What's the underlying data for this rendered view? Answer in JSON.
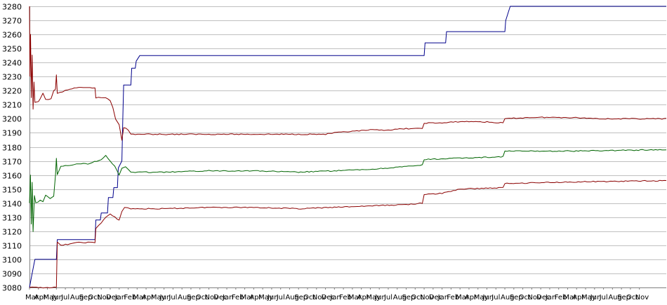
{
  "chart_data": {
    "type": "line",
    "title": "",
    "xlabel": "",
    "ylabel": "",
    "ylim": [
      3080,
      3280
    ],
    "yticks": [
      3080,
      3090,
      3100,
      3110,
      3120,
      3130,
      3140,
      3150,
      3160,
      3170,
      3180,
      3190,
      3200,
      3210,
      3220,
      3230,
      3240,
      3250,
      3260,
      3270,
      3280
    ],
    "grid": true,
    "legend": "none",
    "x_domain": [
      0,
      71
    ],
    "xticks": [
      {
        "x": 0,
        "label": "Mar"
      },
      {
        "x": 1,
        "label": "Apr"
      },
      {
        "x": 2,
        "label": "May"
      },
      {
        "x": 3,
        "label": "Jun"
      },
      {
        "x": 4,
        "label": "Jul"
      },
      {
        "x": 5,
        "label": "Aug"
      },
      {
        "x": 6,
        "label": "Sep"
      },
      {
        "x": 7,
        "label": "Oct"
      },
      {
        "x": 8,
        "label": "Nov"
      },
      {
        "x": 9,
        "label": "Dec"
      },
      {
        "x": 10,
        "label": "Jan"
      },
      {
        "x": 11,
        "label": "Feb"
      },
      {
        "x": 12,
        "label": "Mar"
      },
      {
        "x": 13,
        "label": "Apr"
      },
      {
        "x": 14,
        "label": "May"
      },
      {
        "x": 15,
        "label": "Jun"
      },
      {
        "x": 16,
        "label": "Jul"
      },
      {
        "x": 17,
        "label": "Aug"
      },
      {
        "x": 18,
        "label": "Sep"
      },
      {
        "x": 19,
        "label": "Oct"
      },
      {
        "x": 20,
        "label": "Nov"
      },
      {
        "x": 21,
        "label": "Dec"
      },
      {
        "x": 22,
        "label": "Jan"
      },
      {
        "x": 23,
        "label": "Feb"
      },
      {
        "x": 24,
        "label": "Mar"
      },
      {
        "x": 25,
        "label": "Apr"
      },
      {
        "x": 26,
        "label": "May"
      },
      {
        "x": 27,
        "label": "Jun"
      },
      {
        "x": 28,
        "label": "Jul"
      },
      {
        "x": 29,
        "label": "Aug"
      },
      {
        "x": 30,
        "label": "Sep"
      },
      {
        "x": 31,
        "label": "Oct"
      },
      {
        "x": 32,
        "label": "Nov"
      },
      {
        "x": 33,
        "label": "Dec"
      },
      {
        "x": 34,
        "label": "Jan"
      },
      {
        "x": 35,
        "label": "Feb"
      },
      {
        "x": 36,
        "label": "Mar"
      },
      {
        "x": 37,
        "label": "Apr"
      },
      {
        "x": 38,
        "label": "May"
      },
      {
        "x": 39,
        "label": "Jun"
      },
      {
        "x": 40,
        "label": "Jul"
      },
      {
        "x": 41,
        "label": "Aug"
      },
      {
        "x": 42,
        "label": "Sep"
      },
      {
        "x": 43,
        "label": "Oct"
      },
      {
        "x": 44,
        "label": "Nov"
      },
      {
        "x": 45,
        "label": "Dec"
      },
      {
        "x": 46,
        "label": "Jan"
      },
      {
        "x": 47,
        "label": "Feb"
      },
      {
        "x": 48,
        "label": "Mar"
      },
      {
        "x": 49,
        "label": "Apr"
      },
      {
        "x": 50,
        "label": "May"
      },
      {
        "x": 51,
        "label": "Jun"
      },
      {
        "x": 52,
        "label": "Jul"
      },
      {
        "x": 53,
        "label": "Aug"
      },
      {
        "x": 54,
        "label": "Sep"
      },
      {
        "x": 55,
        "label": "Oct"
      },
      {
        "x": 56,
        "label": "Nov"
      },
      {
        "x": 57,
        "label": "Dec"
      },
      {
        "x": 58,
        "label": "Jan"
      },
      {
        "x": 59,
        "label": "Feb"
      },
      {
        "x": 60,
        "label": "Mar"
      },
      {
        "x": 61,
        "label": "Apr"
      },
      {
        "x": 62,
        "label": "May"
      },
      {
        "x": 63,
        "label": "Jun"
      },
      {
        "x": 64,
        "label": "Jul"
      },
      {
        "x": 65,
        "label": "Aug"
      },
      {
        "x": 66,
        "label": "Sep"
      },
      {
        "x": 67,
        "label": "Oct"
      },
      {
        "x": 68,
        "label": "Nov"
      }
    ],
    "series": [
      {
        "color": "#00008b",
        "points": [
          [
            0,
            3080
          ],
          [
            0.6,
            3100
          ],
          [
            3.0,
            3100
          ],
          [
            3.1,
            3114
          ],
          [
            7.3,
            3114
          ],
          [
            7.4,
            3128
          ],
          [
            7.9,
            3128
          ],
          [
            8.0,
            3133
          ],
          [
            8.7,
            3133
          ],
          [
            8.8,
            3144
          ],
          [
            9.3,
            3144
          ],
          [
            9.4,
            3151
          ],
          [
            9.8,
            3151
          ],
          [
            9.9,
            3165
          ],
          [
            10.3,
            3170
          ],
          [
            10.4,
            3200
          ],
          [
            10.5,
            3224
          ],
          [
            11.3,
            3224
          ],
          [
            11.4,
            3236
          ],
          [
            11.8,
            3236
          ],
          [
            11.9,
            3241
          ],
          [
            12.3,
            3245
          ],
          [
            44.0,
            3245
          ],
          [
            44.1,
            3254
          ],
          [
            46.4,
            3254
          ],
          [
            46.5,
            3262
          ],
          [
            53.0,
            3262
          ],
          [
            53.1,
            3270
          ],
          [
            53.6,
            3280
          ],
          [
            71,
            3280
          ]
        ]
      },
      {
        "color": "#8b0000",
        "points": [
          [
            0,
            3280
          ],
          [
            0.05,
            3230
          ],
          [
            0.12,
            3260
          ],
          [
            0.2,
            3215
          ],
          [
            0.3,
            3245
          ],
          [
            0.4,
            3207
          ],
          [
            0.5,
            3226
          ],
          [
            0.6,
            3212
          ],
          [
            1.0,
            3212
          ],
          [
            1.2,
            3214
          ],
          [
            1.5,
            3218
          ],
          [
            1.8,
            3214
          ],
          [
            2.4,
            3214
          ],
          [
            2.7,
            3220
          ],
          [
            2.9,
            3221
          ],
          [
            3.0,
            3231
          ],
          [
            3.1,
            3218
          ],
          [
            4.0,
            3220
          ],
          [
            5.0,
            3222
          ],
          [
            6.0,
            3222
          ],
          [
            7.0,
            3222
          ],
          [
            7.3,
            3222
          ],
          [
            7.4,
            3215
          ],
          [
            8.5,
            3215
          ],
          [
            9.0,
            3213
          ],
          [
            9.3,
            3208
          ],
          [
            9.6,
            3200
          ],
          [
            10.0,
            3196
          ],
          [
            10.3,
            3185
          ],
          [
            10.5,
            3194
          ],
          [
            11.0,
            3192
          ],
          [
            11.3,
            3189
          ],
          [
            15,
            3189
          ],
          [
            20,
            3189
          ],
          [
            25,
            3189
          ],
          [
            30,
            3189
          ],
          [
            33,
            3189
          ],
          [
            34,
            3190
          ],
          [
            36,
            3191
          ],
          [
            38,
            3192
          ],
          [
            40,
            3192
          ],
          [
            42,
            3193
          ],
          [
            43.8,
            3193
          ],
          [
            44.0,
            3197
          ],
          [
            46,
            3197
          ],
          [
            48,
            3198
          ],
          [
            50,
            3198
          ],
          [
            52.8,
            3197
          ],
          [
            53.0,
            3200
          ],
          [
            56,
            3201
          ],
          [
            60,
            3201
          ],
          [
            64,
            3200
          ],
          [
            71,
            3200
          ]
        ]
      },
      {
        "color": "#006400",
        "points": [
          [
            0,
            3140
          ],
          [
            0.1,
            3160
          ],
          [
            0.2,
            3125
          ],
          [
            0.3,
            3155
          ],
          [
            0.4,
            3120
          ],
          [
            0.55,
            3145
          ],
          [
            0.7,
            3140
          ],
          [
            1.2,
            3142
          ],
          [
            1.5,
            3141
          ],
          [
            1.8,
            3146
          ],
          [
            2.3,
            3143
          ],
          [
            2.7,
            3145
          ],
          [
            2.9,
            3160
          ],
          [
            3.0,
            3172
          ],
          [
            3.1,
            3160
          ],
          [
            3.5,
            3166
          ],
          [
            4.5,
            3167
          ],
          [
            5.5,
            3168
          ],
          [
            6.5,
            3168
          ],
          [
            7.0,
            3169
          ],
          [
            7.5,
            3170
          ],
          [
            8.0,
            3171
          ],
          [
            8.5,
            3174
          ],
          [
            9.0,
            3170
          ],
          [
            9.5,
            3166
          ],
          [
            10.0,
            3160
          ],
          [
            10.3,
            3165
          ],
          [
            10.7,
            3166
          ],
          [
            11.3,
            3162
          ],
          [
            15,
            3162
          ],
          [
            20,
            3163
          ],
          [
            25,
            3163
          ],
          [
            30,
            3162
          ],
          [
            34,
            3163
          ],
          [
            38,
            3164
          ],
          [
            42,
            3166
          ],
          [
            43.8,
            3167
          ],
          [
            44.0,
            3171
          ],
          [
            48,
            3172
          ],
          [
            52.8,
            3173
          ],
          [
            53.0,
            3177
          ],
          [
            60,
            3177
          ],
          [
            71,
            3178
          ]
        ]
      },
      {
        "color": "#8b0000",
        "points": [
          [
            0,
            3080
          ],
          [
            3.0,
            3080
          ],
          [
            3.1,
            3112
          ],
          [
            3.5,
            3110
          ],
          [
            4.5,
            3111
          ],
          [
            5.5,
            3112
          ],
          [
            6.5,
            3112
          ],
          [
            7.3,
            3112
          ],
          [
            7.4,
            3122
          ],
          [
            8.0,
            3126
          ],
          [
            8.5,
            3130
          ],
          [
            9.0,
            3132
          ],
          [
            9.5,
            3130
          ],
          [
            10.0,
            3128
          ],
          [
            10.3,
            3134
          ],
          [
            10.6,
            3137
          ],
          [
            11.3,
            3136
          ],
          [
            15,
            3136
          ],
          [
            20,
            3137
          ],
          [
            25,
            3137
          ],
          [
            30,
            3136
          ],
          [
            34,
            3137
          ],
          [
            38,
            3138
          ],
          [
            42,
            3139
          ],
          [
            43.8,
            3140
          ],
          [
            44.0,
            3146
          ],
          [
            46,
            3147
          ],
          [
            48,
            3150
          ],
          [
            52.8,
            3151
          ],
          [
            53.0,
            3154
          ],
          [
            60,
            3155
          ],
          [
            71,
            3156
          ]
        ]
      }
    ]
  }
}
